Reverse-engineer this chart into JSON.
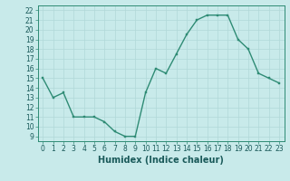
{
  "x": [
    0,
    1,
    2,
    3,
    4,
    5,
    6,
    7,
    8,
    9,
    10,
    11,
    12,
    13,
    14,
    15,
    16,
    17,
    18,
    19,
    20,
    21,
    22,
    23
  ],
  "y": [
    15,
    13,
    13.5,
    11,
    11,
    11,
    10.5,
    9.5,
    9,
    9,
    13.5,
    16,
    15.5,
    17.5,
    19.5,
    21,
    21.5,
    21.5,
    21.5,
    19,
    18,
    15.5,
    15,
    14.5
  ],
  "line_color": "#2e8b74",
  "marker_color": "#2e8b74",
  "bg_color": "#c8eaea",
  "grid_color": "#b0d8d8",
  "xlabel": "Humidex (Indice chaleur)",
  "xlim": [
    -0.5,
    23.5
  ],
  "ylim": [
    8.5,
    22.5
  ],
  "yticks": [
    9,
    10,
    11,
    12,
    13,
    14,
    15,
    16,
    17,
    18,
    19,
    20,
    21,
    22
  ],
  "xticks": [
    0,
    1,
    2,
    3,
    4,
    5,
    6,
    7,
    8,
    9,
    10,
    11,
    12,
    13,
    14,
    15,
    16,
    17,
    18,
    19,
    20,
    21,
    22,
    23
  ],
  "tick_label_fontsize": 5.5,
  "xlabel_fontsize": 7,
  "line_width": 1.0,
  "marker_size": 2.0,
  "text_color": "#1a5a5a"
}
